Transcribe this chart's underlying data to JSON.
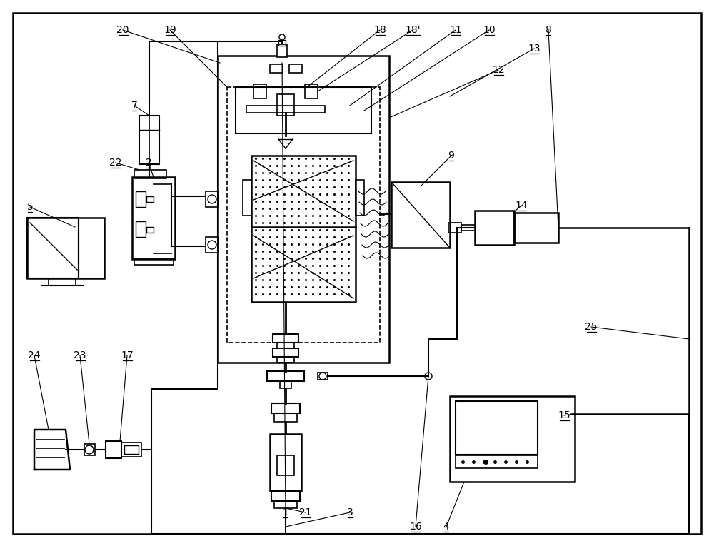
{
  "bg_color": "#ffffff",
  "lc": "#000000",
  "label_positions": [
    [
      "1",
      400,
      718
    ],
    [
      "2",
      208,
      228
    ],
    [
      "3",
      490,
      718
    ],
    [
      "4",
      625,
      738
    ],
    [
      "5",
      42,
      290
    ],
    [
      "7",
      188,
      148
    ],
    [
      "8",
      768,
      42
    ],
    [
      "9",
      632,
      218
    ],
    [
      "10",
      685,
      42
    ],
    [
      "11",
      638,
      42
    ],
    [
      "12",
      698,
      98
    ],
    [
      "13",
      748,
      68
    ],
    [
      "14",
      730,
      288
    ],
    [
      "15",
      790,
      582
    ],
    [
      "16",
      582,
      738
    ],
    [
      "17",
      178,
      498
    ],
    [
      "18",
      532,
      42
    ],
    [
      "18'",
      578,
      42
    ],
    [
      "19",
      238,
      42
    ],
    [
      "20",
      172,
      42
    ],
    [
      "21",
      428,
      718
    ],
    [
      "22",
      162,
      228
    ],
    [
      "23",
      112,
      498
    ],
    [
      "24",
      48,
      498
    ],
    [
      "25",
      828,
      458
    ]
  ]
}
